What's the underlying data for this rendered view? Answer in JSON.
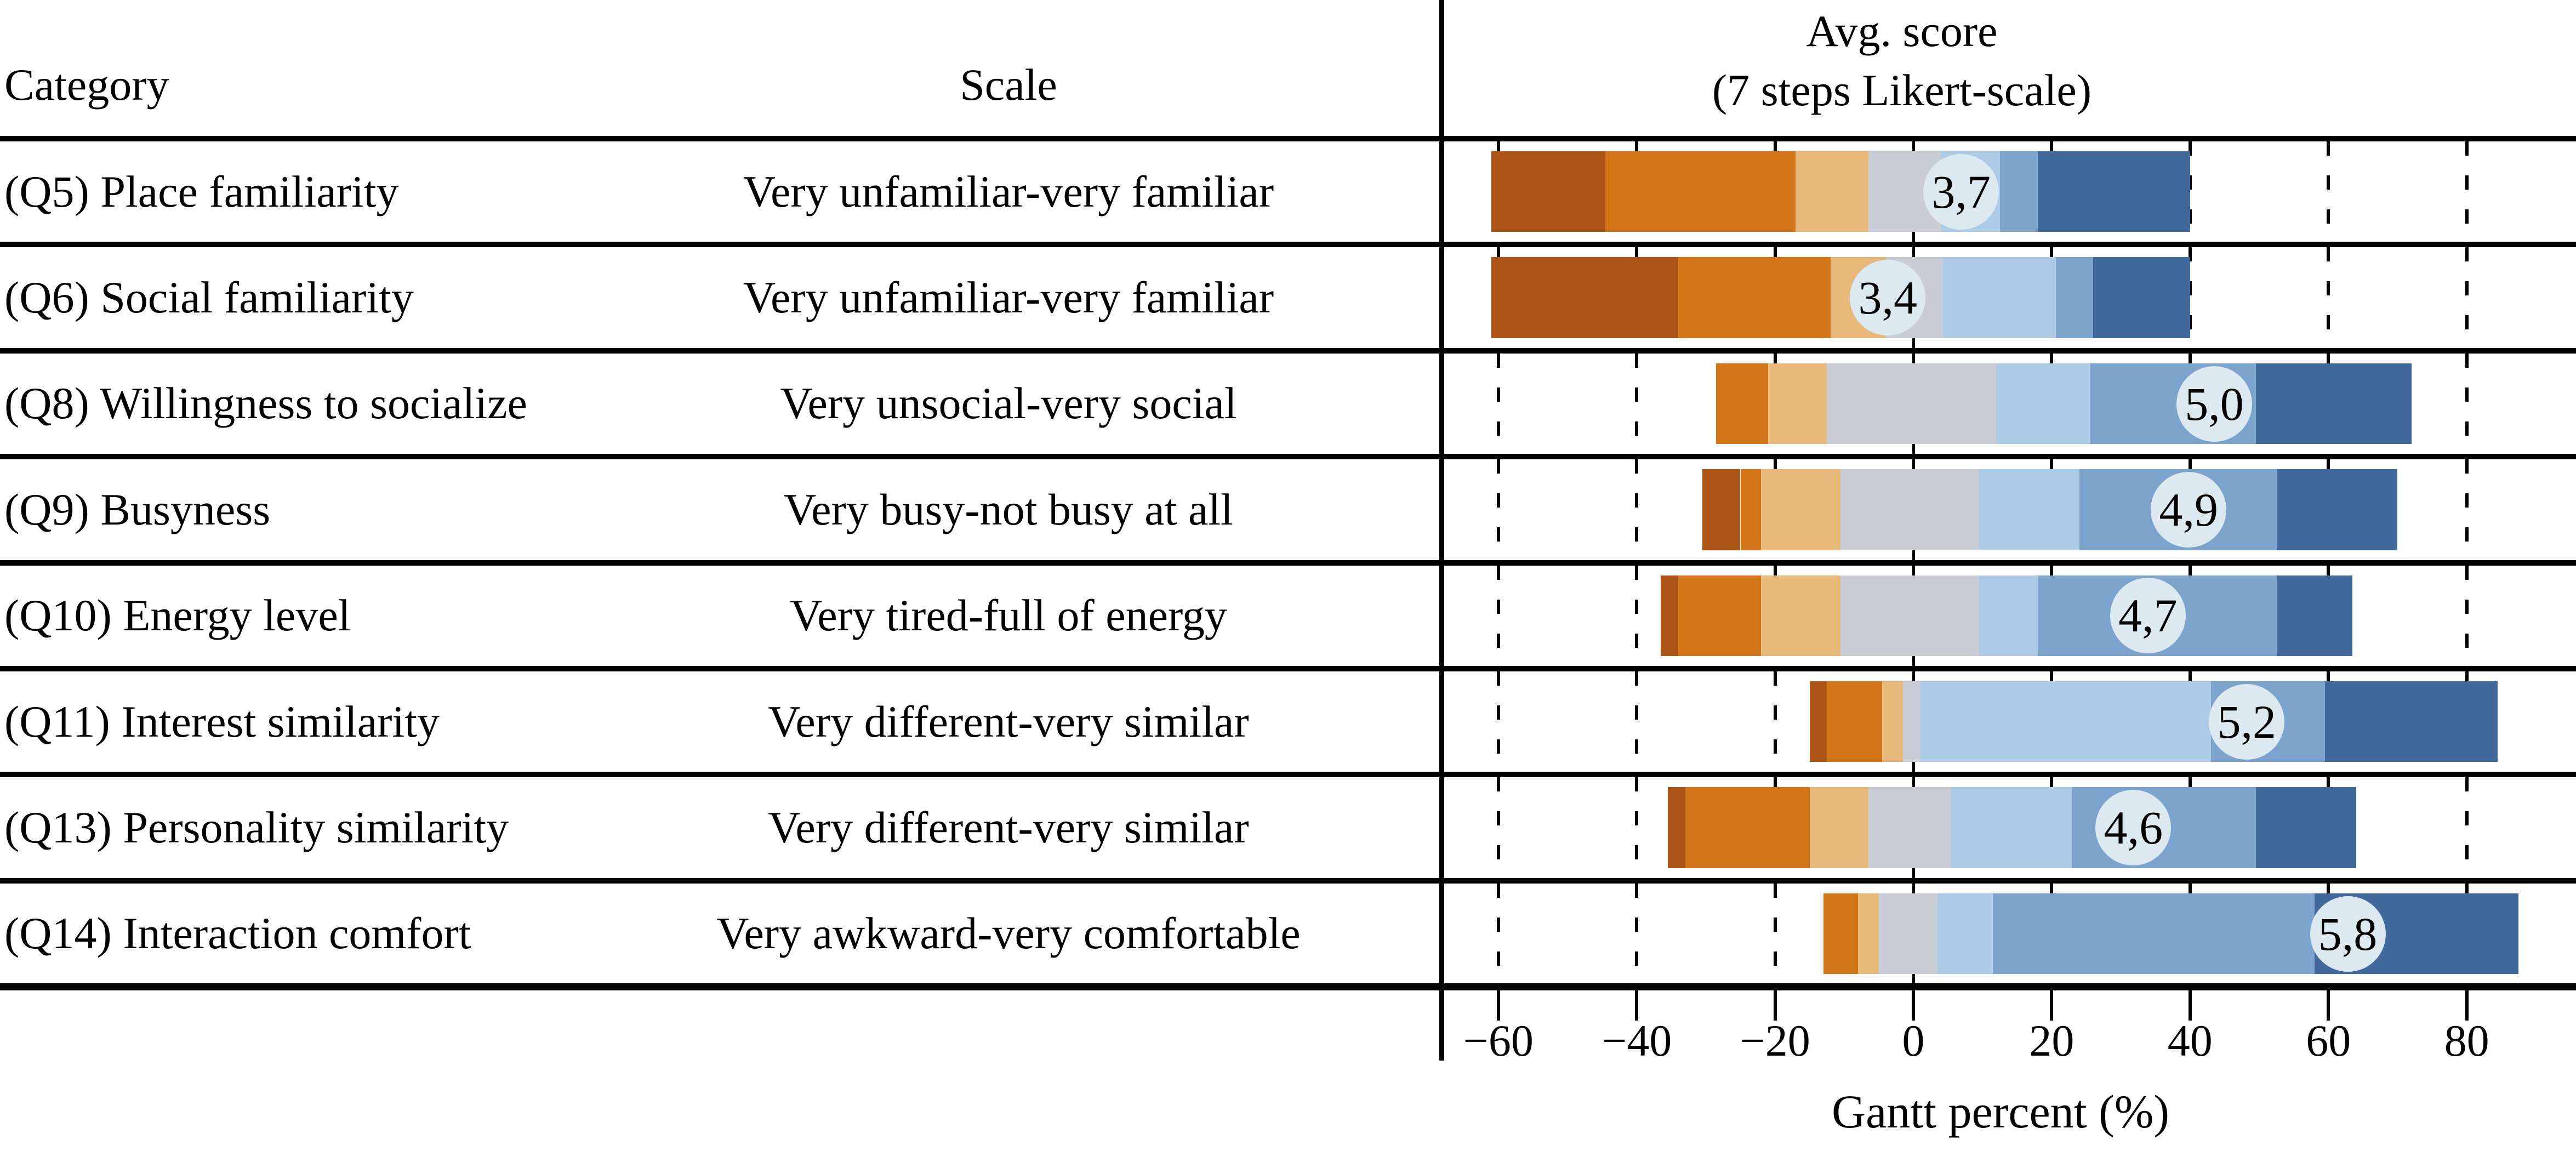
{
  "header": {
    "category_label": "Category",
    "scale_label": "Scale",
    "avg_score_line1": "Avg. score",
    "avg_score_line2": "(7 steps Likert-scale)"
  },
  "axis": {
    "title": "Gantt percent (%)",
    "tick_values": [
      -60,
      -40,
      -20,
      0,
      20,
      40,
      60,
      80
    ],
    "tick_labels": [
      "−60",
      "−40",
      "−20",
      "0",
      "20",
      "40",
      "60",
      "80"
    ]
  },
  "likert_colors": [
    "#ad5418",
    "#d37619",
    "#e8b97b",
    "#cacdd6",
    "#aecbe6",
    "#7ba3cc",
    "#41699c"
  ],
  "score_badge_color": "#dce9f1",
  "chart_data": {
    "type": "bar",
    "subtype": "diverging-stacked-likert",
    "xlabel": "Gantt percent (%)",
    "x_range": [
      -68,
      96
    ],
    "legend": "none",
    "grid": "dashed vertical at ticks, solid at 0",
    "rows": [
      {
        "category": "(Q5) Place familiarity",
        "scale": "Very unfamiliar-very familiar",
        "avg_score": "3,7",
        "start": -61,
        "segments": [
          16.5,
          27.5,
          10.5,
          10.5,
          8.5,
          5.5,
          22
        ],
        "badge_pos": 6.9
      },
      {
        "category": "(Q6) Social familiarity",
        "scale": "Very unfamiliar-very familiar",
        "avg_score": "3,4",
        "start": -61,
        "segments": [
          27,
          22,
          8,
          8.3,
          16.3,
          5.4,
          14
        ],
        "badge_pos": -3.7
      },
      {
        "category": "(Q8) Willingness to socialize",
        "scale": "Very unsocial-very social",
        "avg_score": "5,0",
        "start": -28.5,
        "segments": [
          0,
          7.5,
          8.5,
          24.5,
          13.5,
          24,
          22.5
        ],
        "badge_pos": 43.5
      },
      {
        "category": "(Q9) Busyness",
        "scale": "Very busy-not busy at all",
        "avg_score": "4,9",
        "start": -30.5,
        "segments": [
          5.5,
          3,
          11.5,
          20,
          14.5,
          28.5,
          17.5
        ],
        "badge_pos": 39.8
      },
      {
        "category": "(Q10) Energy level",
        "scale": "Very tired-full of energy",
        "avg_score": "4,7",
        "start": -36.5,
        "segments": [
          2.5,
          12,
          11.5,
          20,
          8.5,
          34.5,
          11
        ],
        "badge_pos": 33.9
      },
      {
        "category": "(Q11) Interest similarity",
        "scale": "Very different-very similar",
        "avg_score": "5,2",
        "start": -15,
        "segments": [
          2.5,
          8,
          3,
          2.5,
          42,
          16.5,
          25
        ],
        "badge_pos": 48.2
      },
      {
        "category": "(Q13) Personality similarity",
        "scale": "Very different-very similar",
        "avg_score": "4,6",
        "start": -35.5,
        "segments": [
          2.5,
          18,
          8.5,
          12,
          17.5,
          26.5,
          14.5
        ],
        "badge_pos": 31.8
      },
      {
        "category": "(Q14) Interaction comfort",
        "scale": "Very awkward-very comfortable",
        "avg_score": "5,8",
        "start": -13,
        "segments": [
          0,
          5,
          3,
          8.5,
          8,
          46.5,
          29.5
        ],
        "badge_pos": 62.8
      }
    ]
  }
}
